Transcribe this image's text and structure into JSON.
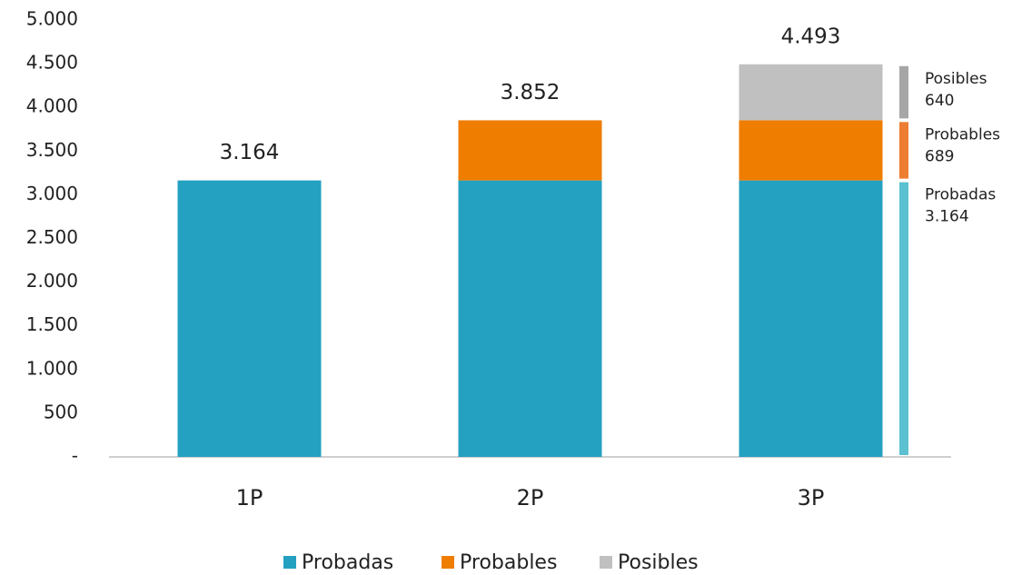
{
  "chart_data": {
    "type": "stacked_bar",
    "categories": [
      "1P",
      "2P",
      "3P"
    ],
    "series": [
      {
        "name": "Probadas",
        "color": "#24a1c1",
        "values": [
          3164,
          3164,
          3164
        ]
      },
      {
        "name": "Probables",
        "color": "#ef7d00",
        "values": [
          null,
          688,
          689
        ]
      },
      {
        "name": "Posibles",
        "color": "#c0c0c0",
        "values": [
          null,
          null,
          640
        ]
      }
    ],
    "totals": {
      "values": [
        3164,
        3852,
        4493
      ],
      "value_labels": [
        "3.164",
        "3.852",
        "4.493"
      ]
    },
    "annotations": [
      {
        "name": "Probadas",
        "value": 3164,
        "label": "3.164",
        "color": "#5bc0cf"
      },
      {
        "name": "Probables",
        "value": 689,
        "color": "#ed7d31"
      },
      {
        "name": "Posibles",
        "value": 640,
        "color": "#a6a6a6"
      }
    ],
    "ylim": [
      0,
      5000
    ],
    "yticks": [
      {
        "value": 0,
        "label": "-"
      },
      500,
      {
        "value": 1000,
        "label": "1.000"
      },
      {
        "value": 1500,
        "label": "1.500"
      },
      {
        "value": 2000,
        "label": "2.000"
      },
      {
        "value": 2500,
        "label": "2.500"
      },
      {
        "value": 3000,
        "label": "3.000"
      },
      {
        "value": 3500,
        "label": "3.500"
      },
      {
        "value": 4000,
        "label": "4.000"
      },
      {
        "value": 4500,
        "label": "4.500"
      },
      {
        "value": 5000,
        "label": "5.000"
      }
    ],
    "grid": false,
    "legend": "bottom"
  }
}
